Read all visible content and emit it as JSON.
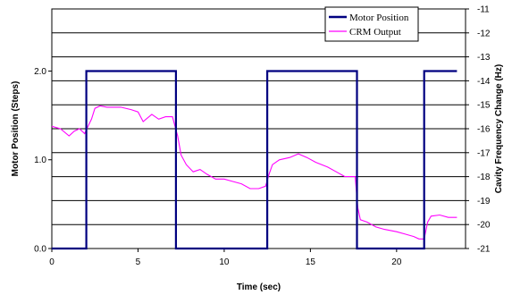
{
  "chart_data": {
    "type": "line",
    "title": "",
    "xlabel": "Time (sec)",
    "ylabel_left": "Motor Position (Steps)",
    "ylabel_right": "Cavity Frequency Change (Hz)",
    "xlim": [
      0,
      24
    ],
    "ylim_left": [
      0,
      2.7
    ],
    "ylim_right": [
      -21,
      -11
    ],
    "x_ticks": [
      0,
      5,
      10,
      15,
      20
    ],
    "y_left_ticks": [
      0.0,
      1.0,
      2.0
    ],
    "y_left_tick_labels": [
      "0.0",
      "1.0",
      "2.0"
    ],
    "y_right_ticks": [
      -11,
      -12,
      -13,
      -14,
      -15,
      -16,
      -17,
      -18,
      -19,
      -20,
      -21
    ],
    "grid": "horizontal",
    "legend_position": "top-right",
    "series": [
      {
        "name": "Motor Position",
        "axis": "left",
        "color": "#000080",
        "x": [
          0,
          2.0,
          2.0,
          7.2,
          7.2,
          12.5,
          12.5,
          17.7,
          17.7,
          21.6,
          21.6,
          23.5
        ],
        "y": [
          0,
          0,
          2,
          2,
          0,
          0,
          2,
          2,
          0,
          0,
          2,
          2
        ]
      },
      {
        "name": "CRM Output",
        "axis": "right",
        "color": "#ff00ff",
        "x": [
          0,
          0.5,
          1.0,
          1.3,
          1.6,
          1.9,
          2.1,
          2.3,
          2.5,
          2.8,
          3.2,
          4.0,
          4.6,
          5.0,
          5.3,
          5.8,
          6.2,
          6.6,
          7.0,
          7.3,
          7.5,
          7.8,
          8.2,
          8.6,
          9.0,
          9.5,
          10.0,
          10.5,
          11.0,
          11.5,
          12.0,
          12.4,
          12.6,
          12.8,
          13.2,
          13.8,
          14.3,
          14.8,
          15.3,
          16.0,
          16.5,
          17.0,
          17.3,
          17.6,
          17.75,
          17.9,
          18.3,
          18.8,
          19.3,
          20.0,
          20.5,
          21.0,
          21.3,
          21.6,
          21.8,
          22.0,
          22.5,
          23.0,
          23.5
        ],
        "y": [
          -15.9,
          -16.0,
          -16.3,
          -16.1,
          -16.0,
          -16.2,
          -15.9,
          -15.6,
          -15.15,
          -15.05,
          -15.1,
          -15.1,
          -15.2,
          -15.3,
          -15.7,
          -15.4,
          -15.6,
          -15.5,
          -15.5,
          -16.3,
          -17.1,
          -17.5,
          -17.8,
          -17.7,
          -17.9,
          -18.1,
          -18.1,
          -18.2,
          -18.3,
          -18.5,
          -18.5,
          -18.4,
          -17.9,
          -17.5,
          -17.3,
          -17.2,
          -17.05,
          -17.2,
          -17.4,
          -17.6,
          -17.8,
          -18.0,
          -18.0,
          -18.0,
          -19.3,
          -19.8,
          -19.9,
          -20.1,
          -20.2,
          -20.3,
          -20.4,
          -20.5,
          -20.6,
          -20.6,
          -19.9,
          -19.65,
          -19.6,
          -19.7,
          -19.7
        ]
      }
    ]
  }
}
